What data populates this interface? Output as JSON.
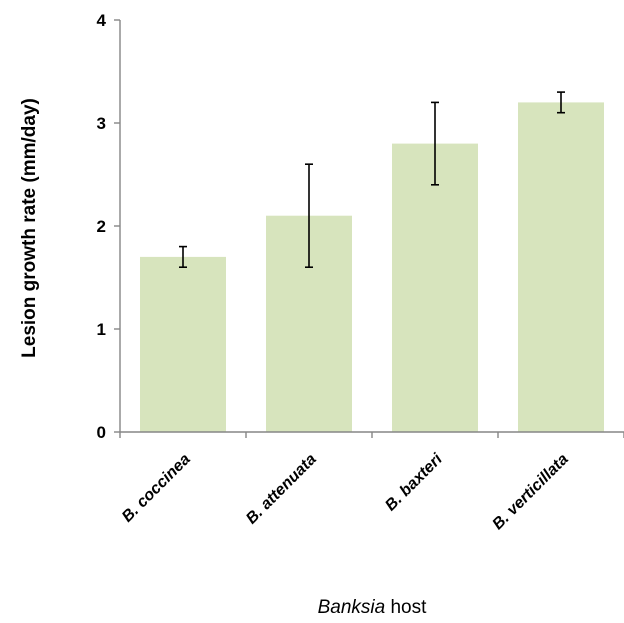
{
  "chart_data": {
    "type": "bar",
    "categories": [
      "B. coccinea",
      "B. attenuata",
      "B. baxteri",
      "B. verticillata"
    ],
    "values": [
      1.7,
      2.1,
      2.8,
      3.2
    ],
    "error_bars": [
      {
        "low": 1.6,
        "high": 1.8
      },
      {
        "low": 1.6,
        "high": 2.6
      },
      {
        "low": 2.4,
        "high": 3.2
      },
      {
        "low": 3.1,
        "high": 3.3
      }
    ],
    "ylabel": "Lesion growth rate (mm/day)",
    "xlabel_italic": "Banksia",
    "xlabel_rest": " host",
    "ylim": [
      0,
      4
    ],
    "yticks": [
      "0",
      "1",
      "2",
      "3",
      "4"
    ],
    "grid": false,
    "bar_color": "#d7e4bd",
    "axis_color": "#868686",
    "errorbar_color": "#000000"
  }
}
